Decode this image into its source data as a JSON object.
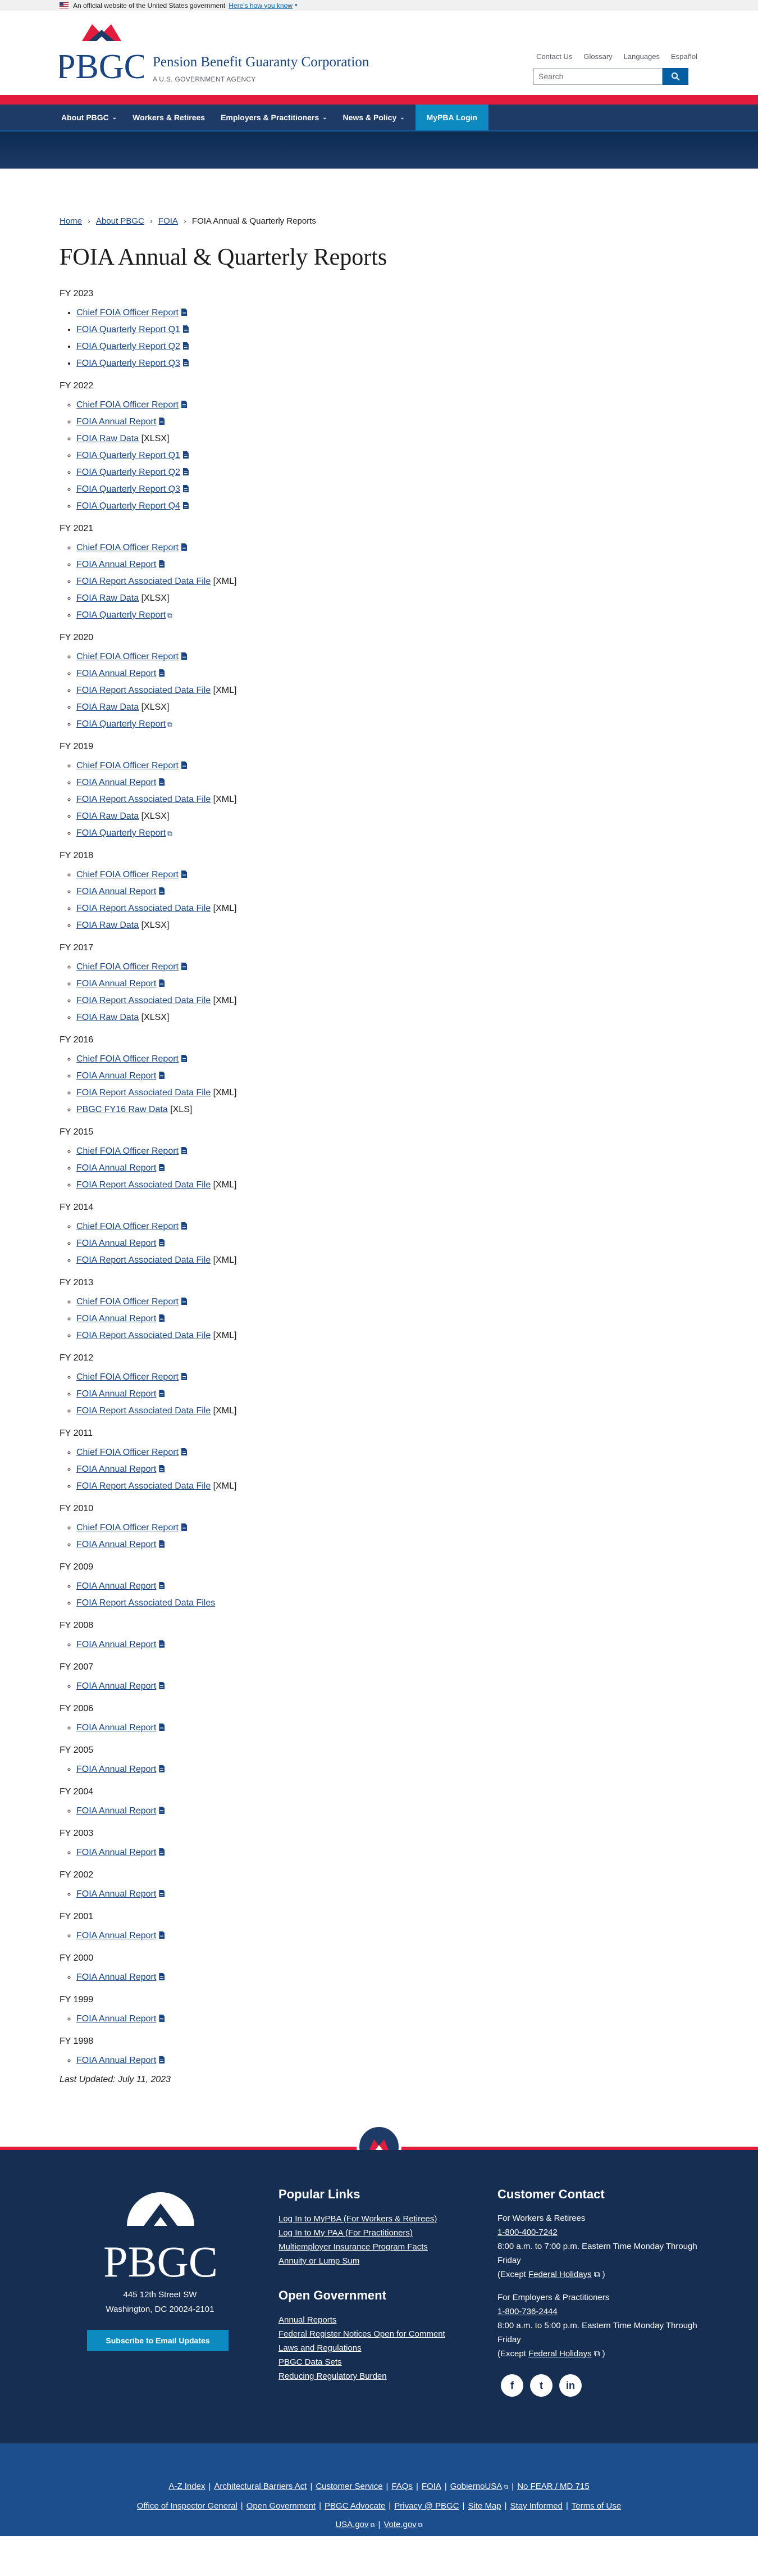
{
  "gov_banner": {
    "text": "An official website of the United States government",
    "link": "Here's how you know"
  },
  "header": {
    "logo_text": "PBGC",
    "agency_name": "Pension Benefit Guaranty Corporation",
    "agency_sub": "A U.S. GOVERNMENT AGENCY",
    "utility_links": [
      "Contact Us",
      "Glossary",
      "Languages",
      "Español"
    ],
    "search_placeholder": "Search"
  },
  "nav": {
    "items": [
      "About PBGC",
      "Workers & Retirees",
      "Employers & Practitioners",
      "News & Policy"
    ],
    "login": "MyPBA Login"
  },
  "breadcrumb": [
    "Home",
    "About PBGC",
    "FOIA",
    "FOIA Annual & Quarterly Reports"
  ],
  "page_title": "FOIA Annual & Quarterly Reports",
  "years": [
    {
      "label": "FY 2023",
      "bullet": "disc",
      "links": [
        {
          "text": "Chief FOIA Officer Report",
          "icon": "doc"
        },
        {
          "text": "FOIA Quarterly Report Q1",
          "icon": "doc"
        },
        {
          "text": "FOIA Quarterly Report Q2",
          "icon": "doc"
        },
        {
          "text": "FOIA Quarterly Report Q3",
          "icon": "doc"
        }
      ]
    },
    {
      "label": "FY 2022",
      "links": [
        {
          "text": "Chief FOIA Officer Report",
          "icon": "doc"
        },
        {
          "text": "FOIA Annual Report",
          "icon": "doc"
        },
        {
          "text": "FOIA Raw Data",
          "suffix": "[XLSX]"
        },
        {
          "text": "FOIA Quarterly Report Q1",
          "icon": "doc"
        },
        {
          "text": "FOIA Quarterly Report Q2",
          "icon": "doc"
        },
        {
          "text": "FOIA Quarterly Report Q3",
          "icon": "doc"
        },
        {
          "text": "FOIA Quarterly Report Q4",
          "icon": "doc"
        }
      ]
    },
    {
      "label": "FY 2021",
      "links": [
        {
          "text": "Chief FOIA Officer Report",
          "icon": "doc"
        },
        {
          "text": "FOIA Annual Report",
          "icon": "doc"
        },
        {
          "text": "FOIA Report Associated Data File",
          "suffix": "[XML]"
        },
        {
          "text": "FOIA Raw Data",
          "suffix": "[XLSX]"
        },
        {
          "text": "FOIA Quarterly Report",
          "icon": "ext"
        }
      ]
    },
    {
      "label": "FY 2020",
      "links": [
        {
          "text": "Chief FOIA Officer Report",
          "icon": "doc"
        },
        {
          "text": "FOIA Annual Report",
          "icon": "doc"
        },
        {
          "text": "FOIA Report Associated Data File",
          "suffix": "[XML]"
        },
        {
          "text": "FOIA Raw Data",
          "suffix": "[XLSX]"
        },
        {
          "text": "FOIA Quarterly Report",
          "icon": "ext"
        }
      ]
    },
    {
      "label": "FY 2019",
      "links": [
        {
          "text": "Chief FOIA Officer Report",
          "icon": "doc"
        },
        {
          "text": "FOIA Annual Report",
          "icon": "doc"
        },
        {
          "text": "FOIA Report Associated Data File",
          "suffix": "[XML]"
        },
        {
          "text": "FOIA Raw Data",
          "suffix": "[XLSX]"
        },
        {
          "text": "FOIA Quarterly Report",
          "icon": "ext"
        }
      ]
    },
    {
      "label": "FY 2018",
      "links": [
        {
          "text": "Chief FOIA Officer Report",
          "icon": "doc"
        },
        {
          "text": "FOIA Annual Report",
          "icon": "doc"
        },
        {
          "text": "FOIA Report Associated Data File",
          "suffix": "[XML]"
        },
        {
          "text": "FOIA Raw Data",
          "suffix": "[XLSX]"
        }
      ]
    },
    {
      "label": "FY 2017",
      "links": [
        {
          "text": "Chief FOIA Officer Report",
          "icon": "doc"
        },
        {
          "text": "FOIA Annual Report",
          "icon": "doc"
        },
        {
          "text": "FOIA Report Associated Data File",
          "suffix": "[XML]"
        },
        {
          "text": "FOIA Raw Data",
          "suffix": "[XLSX]"
        }
      ]
    },
    {
      "label": "FY 2016",
      "links": [
        {
          "text": "Chief FOIA Officer Report",
          "icon": "doc"
        },
        {
          "text": "FOIA Annual Report",
          "icon": "doc"
        },
        {
          "text": "FOIA Report Associated Data File",
          "suffix": "[XML]"
        },
        {
          "text": "PBGC FY16 Raw Data",
          "suffix": "[XLS]"
        }
      ]
    },
    {
      "label": "FY 2015",
      "links": [
        {
          "text": "Chief FOIA Officer Report",
          "icon": "doc"
        },
        {
          "text": "FOIA Annual Report",
          "icon": "doc"
        },
        {
          "text": "FOIA Report Associated Data File",
          "suffix": "[XML]"
        }
      ]
    },
    {
      "label": "FY 2014",
      "links": [
        {
          "text": "Chief FOIA Officer Report",
          "icon": "doc"
        },
        {
          "text": "FOIA Annual Report",
          "icon": "doc"
        },
        {
          "text": "FOIA Report Associated Data File",
          "suffix": "[XML]"
        }
      ]
    },
    {
      "label": "FY 2013",
      "links": [
        {
          "text": "Chief FOIA Officer Report",
          "icon": "doc"
        },
        {
          "text": "FOIA Annual Report",
          "icon": "doc"
        },
        {
          "text": "FOIA Report Associated Data File",
          "suffix": "[XML]"
        }
      ]
    },
    {
      "label": "FY 2012",
      "links": [
        {
          "text": "Chief FOIA Officer Report",
          "icon": "doc"
        },
        {
          "text": "FOIA Annual Report",
          "icon": "doc"
        },
        {
          "text": "FOIA Report Associated Data File",
          "suffix": "[XML]"
        }
      ]
    },
    {
      "label": "FY 2011",
      "links": [
        {
          "text": "Chief FOIA Officer Report",
          "icon": "doc"
        },
        {
          "text": "FOIA Annual Report",
          "icon": "doc"
        },
        {
          "text": "FOIA Report Associated Data File",
          "suffix": "[XML]"
        }
      ]
    },
    {
      "label": "FY 2010",
      "links": [
        {
          "text": "Chief FOIA Officer Report",
          "icon": "doc"
        },
        {
          "text": "FOIA Annual Report",
          "icon": "doc"
        }
      ]
    },
    {
      "label": "FY 2009",
      "links": [
        {
          "text": "FOIA Annual Report",
          "icon": "doc"
        },
        {
          "text": "FOIA Report Associated Data Files"
        }
      ]
    },
    {
      "label": "FY 2008",
      "links": [
        {
          "text": "FOIA Annual Report",
          "icon": "doc"
        }
      ]
    },
    {
      "label": "FY 2007",
      "links": [
        {
          "text": "FOIA Annual Report",
          "icon": "doc"
        }
      ]
    },
    {
      "label": "FY 2006",
      "links": [
        {
          "text": "FOIA Annual Report",
          "icon": "doc"
        }
      ]
    },
    {
      "label": "FY 2005",
      "links": [
        {
          "text": "FOIA Annual Report",
          "icon": "doc"
        }
      ]
    },
    {
      "label": "FY 2004",
      "links": [
        {
          "text": "FOIA Annual Report",
          "icon": "doc"
        }
      ]
    },
    {
      "label": "FY 2003",
      "links": [
        {
          "text": "FOIA Annual Report",
          "icon": "doc"
        }
      ]
    },
    {
      "label": "FY 2002",
      "links": [
        {
          "text": "FOIA Annual Report",
          "icon": "doc"
        }
      ]
    },
    {
      "label": "FY 2001",
      "links": [
        {
          "text": "FOIA Annual Report",
          "icon": "doc"
        }
      ]
    },
    {
      "label": "FY 2000",
      "links": [
        {
          "text": "FOIA Annual Report",
          "icon": "doc"
        }
      ]
    },
    {
      "label": "FY 1999",
      "links": [
        {
          "text": "FOIA Annual Report",
          "icon": "doc"
        }
      ]
    },
    {
      "label": "FY 1998",
      "links": [
        {
          "text": "FOIA Annual Report",
          "icon": "doc"
        }
      ]
    }
  ],
  "last_updated": "Last Updated: July 11, 2023",
  "footer": {
    "logo_text": "PBGC",
    "address_line1": "445 12th Street SW",
    "address_line2": "Washington, DC 20024-2101",
    "subscribe": "Subscribe to Email Updates",
    "popular_heading": "Popular Links",
    "popular_links": [
      "Log In to MyPBA (For Workers & Retirees)",
      "Log In to My PAA (For Practitioners)",
      "Multiemployer Insurance Program Facts",
      "Annuity or Lump Sum"
    ],
    "opengov_heading": "Open Government",
    "opengov_links": [
      "Annual Reports",
      "Federal Register Notices Open for Comment",
      "Laws and Regulations",
      "PBGC Data Sets",
      "Reducing Regulatory Burden"
    ],
    "contact_heading": "Customer Contact",
    "workers_label": "For Workers & Retirees",
    "workers_phone": "1-800-400-7242",
    "workers_hours": "8:00 a.m. to 7:00 p.m. Eastern Time Monday Through Friday",
    "except_prefix": "(Except",
    "holidays": "Federal Holidays",
    "except_suffix": ")",
    "employers_label": "For Employers & Practitioners",
    "employers_phone": "1-800-736-2444",
    "employers_hours": "8:00 a.m. to 5:00 p.m. Eastern Time Monday Through Friday",
    "socials": [
      "f",
      "t",
      "in"
    ],
    "bottom_row1": [
      "A-Z Index",
      "Architectural Barriers Act",
      "Customer Service",
      "FAQs",
      "FOIA",
      "GobiernoUSA",
      "No FEAR / MD 715"
    ],
    "bottom_row2": [
      "Office of Inspector General",
      "Open Government",
      "PBGC Advocate",
      "Privacy @ PBGC",
      "Site Map",
      "Stay Informed",
      "Terms of Use"
    ],
    "bottom_row3": [
      "USA.gov",
      "Vote.gov"
    ]
  },
  "colors": {
    "navy": "#1e3a67",
    "red": "#e31c3d",
    "link": "#1a4480",
    "accent": "#0d8bc1",
    "footer": "#162e51",
    "footer_bottom": "#1c4d8c"
  }
}
